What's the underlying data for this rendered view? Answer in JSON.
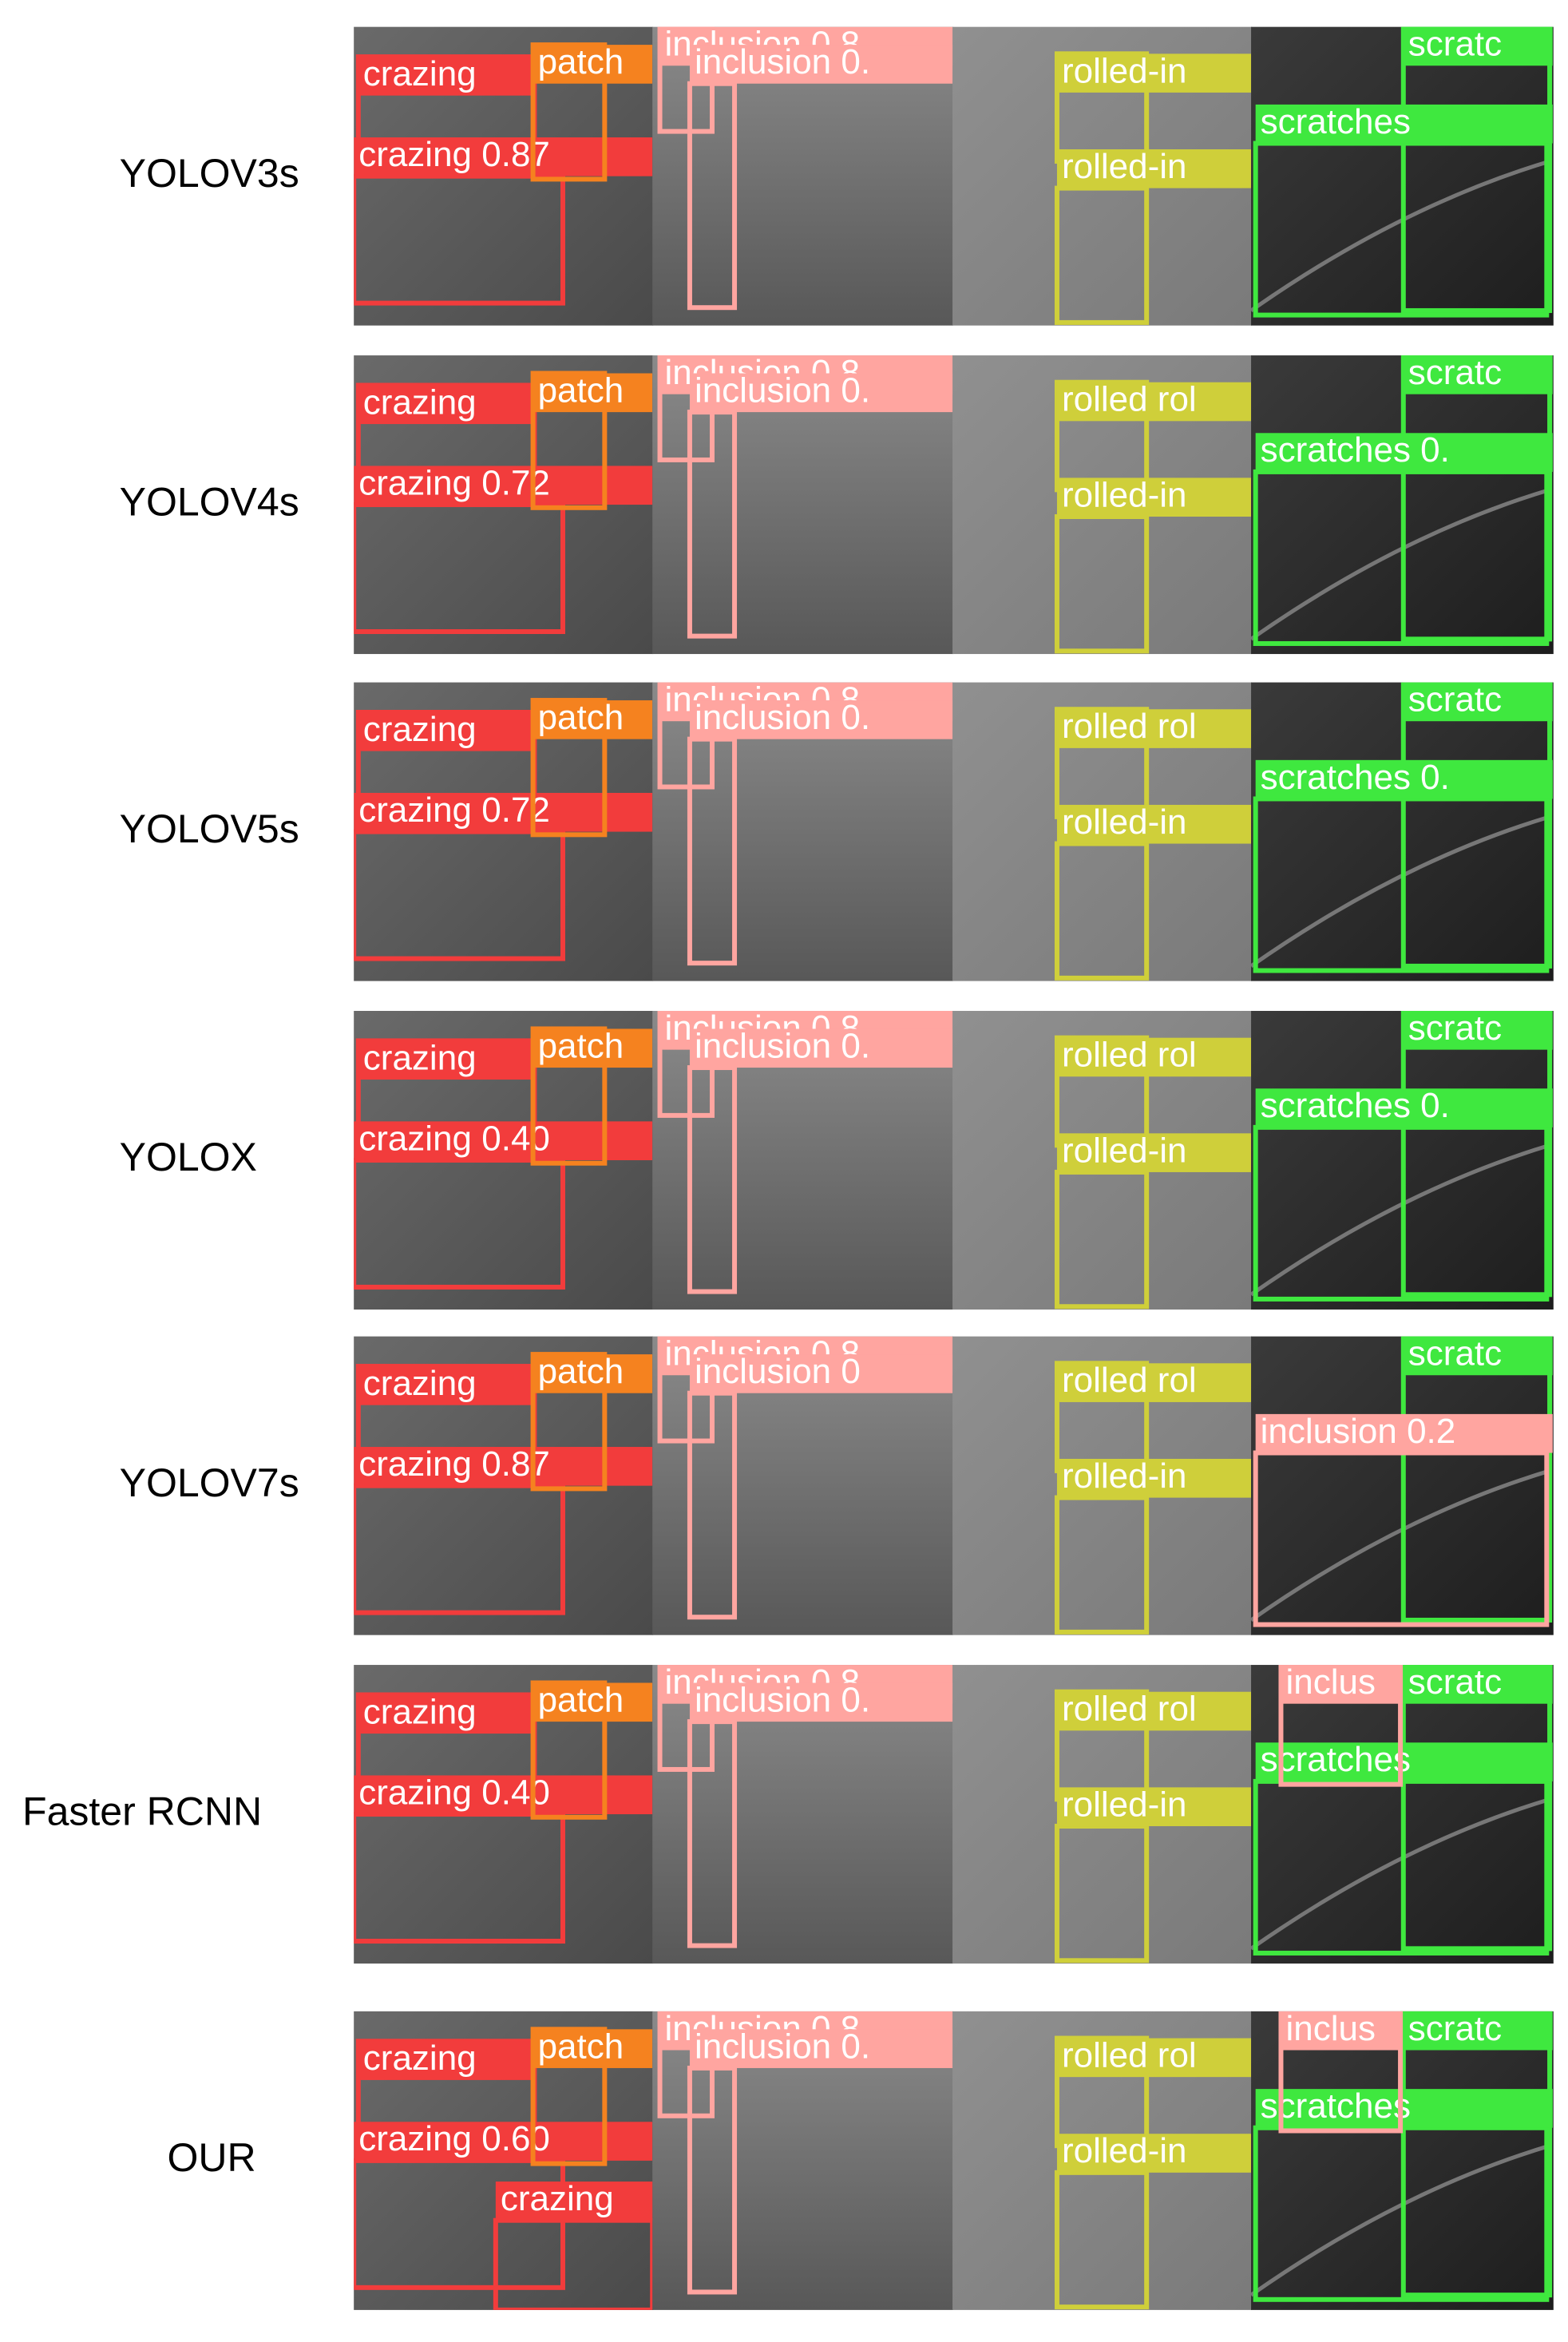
{
  "rows": [
    {
      "model": "YOLOV3s",
      "detections": [
        {
          "label": "crazing",
          "color": "#f23c3c"
        },
        {
          "label": "crazing 0.87",
          "color": "#f23c3c"
        },
        {
          "label": "patch",
          "color": "#f5821f"
        },
        {
          "label": "inclusion 0.8",
          "color": "#ffa5a0"
        },
        {
          "label": "inclusion 0.",
          "color": "#ffa5a0"
        },
        {
          "label": "rolled-in",
          "color": "#cfcf3a"
        },
        {
          "label": "rolled-in",
          "color": "#cfcf3a"
        },
        {
          "label": "scratc",
          "color": "#3fe83f"
        },
        {
          "label": "scratches",
          "color": "#3fe83f"
        }
      ]
    },
    {
      "model": "YOLOV4s",
      "detections": [
        {
          "label": "crazing",
          "color": "#f23c3c"
        },
        {
          "label": "crazing 0.72",
          "color": "#f23c3c"
        },
        {
          "label": "patch",
          "color": "#f5821f"
        },
        {
          "label": "inclusion 0.8",
          "color": "#ffa5a0"
        },
        {
          "label": "inclusion 0.",
          "color": "#ffa5a0"
        },
        {
          "label": "rolled rol",
          "color": "#cfcf3a"
        },
        {
          "label": "rolled-in",
          "color": "#cfcf3a"
        },
        {
          "label": "scratc",
          "color": "#3fe83f"
        },
        {
          "label": "scratches 0.",
          "color": "#3fe83f"
        }
      ]
    },
    {
      "model": "YOLOV5s",
      "detections": [
        {
          "label": "crazing",
          "color": "#f23c3c"
        },
        {
          "label": "crazing 0.72",
          "color": "#f23c3c"
        },
        {
          "label": "patch",
          "color": "#f5821f"
        },
        {
          "label": "inclusion 0.8",
          "color": "#ffa5a0"
        },
        {
          "label": "inclusion 0.",
          "color": "#ffa5a0"
        },
        {
          "label": "rolled rol",
          "color": "#cfcf3a"
        },
        {
          "label": "rolled-in",
          "color": "#cfcf3a"
        },
        {
          "label": "scratc",
          "color": "#3fe83f"
        },
        {
          "label": "scratches 0.",
          "color": "#3fe83f"
        }
      ]
    },
    {
      "model": "YOLOX",
      "detections": [
        {
          "label": "crazing",
          "color": "#f23c3c"
        },
        {
          "label": "crazing 0.40",
          "color": "#f23c3c"
        },
        {
          "label": "patch",
          "color": "#f5821f"
        },
        {
          "label": "inclusion 0.8",
          "color": "#ffa5a0"
        },
        {
          "label": "inclusion 0.",
          "color": "#ffa5a0"
        },
        {
          "label": "rolled rol",
          "color": "#cfcf3a"
        },
        {
          "label": "rolled-in",
          "color": "#cfcf3a"
        },
        {
          "label": "scratc",
          "color": "#3fe83f"
        },
        {
          "label": "scratches 0.",
          "color": "#3fe83f"
        }
      ]
    },
    {
      "model": "YOLOV7s",
      "detections": [
        {
          "label": "crazing",
          "color": "#f23c3c"
        },
        {
          "label": "crazing 0.87",
          "color": "#f23c3c"
        },
        {
          "label": "patch",
          "color": "#f5821f"
        },
        {
          "label": "inclusion 0.8",
          "color": "#ffa5a0"
        },
        {
          "label": "inclusion 0",
          "color": "#ffa5a0"
        },
        {
          "label": "rolled rol",
          "color": "#cfcf3a"
        },
        {
          "label": "rolled-in",
          "color": "#cfcf3a"
        },
        {
          "label": "scratc",
          "color": "#3fe83f"
        },
        {
          "label": "inclusion 0.2",
          "color": "#ffa5a0"
        }
      ]
    },
    {
      "model": "Faster RCNN",
      "detections": [
        {
          "label": "crazing",
          "color": "#f23c3c"
        },
        {
          "label": "crazing 0.40",
          "color": "#f23c3c"
        },
        {
          "label": "patch",
          "color": "#f5821f"
        },
        {
          "label": "inclusion 0.8",
          "color": "#ffa5a0"
        },
        {
          "label": "inclusion 0.",
          "color": "#ffa5a0"
        },
        {
          "label": "rolled rol",
          "color": "#cfcf3a"
        },
        {
          "label": "rolled-in",
          "color": "#cfcf3a"
        },
        {
          "label": "scratc",
          "color": "#3fe83f"
        },
        {
          "label": "scratches",
          "color": "#3fe83f"
        },
        {
          "label": "inclus",
          "color": "#ffa5a0"
        }
      ]
    },
    {
      "model": "OUR",
      "detections": [
        {
          "label": "crazing",
          "color": "#f23c3c"
        },
        {
          "label": "crazing 0.60",
          "color": "#f23c3c"
        },
        {
          "label": "patch",
          "color": "#f5821f"
        },
        {
          "label": "inclusion 0.8",
          "color": "#ffa5a0"
        },
        {
          "label": "inclusion 0.",
          "color": "#ffa5a0"
        },
        {
          "label": "rolled rol",
          "color": "#cfcf3a"
        },
        {
          "label": "rolled-in",
          "color": "#cfcf3a"
        },
        {
          "label": "scratc",
          "color": "#3fe83f"
        },
        {
          "label": "scratches",
          "color": "#3fe83f"
        },
        {
          "label": "inclus",
          "color": "#ffa5a0"
        },
        {
          "label": "crazing",
          "color": "#f23c3c"
        }
      ]
    }
  ]
}
